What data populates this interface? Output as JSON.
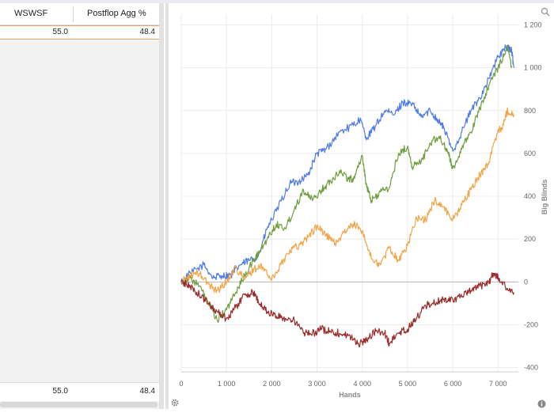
{
  "table": {
    "columns": [
      "WSWSF",
      "Postflop Agg %"
    ],
    "rows": [
      [
        "55.0",
        "48.4"
      ]
    ],
    "footer": [
      "55.0",
      "48.4"
    ]
  },
  "icons": [
    "search-icon",
    "gear-icon",
    "info-icon"
  ],
  "chart_data": {
    "type": "line",
    "title": "",
    "xlabel": "Hands",
    "ylabel": "Big Blinds",
    "xlim": [
      0,
      7450
    ],
    "ylim": [
      -420,
      1250
    ],
    "x_ticks": [
      0,
      1000,
      2000,
      3000,
      4000,
      5000,
      6000,
      7000
    ],
    "x_tick_labels": [
      "0",
      "1 000",
      "2 000",
      "3 000",
      "4 000",
      "5 000",
      "6 000",
      "7 000"
    ],
    "y_ticks": [
      -400,
      -200,
      0,
      200,
      400,
      600,
      800,
      1000,
      1200
    ],
    "y_tick_labels": [
      "-400",
      "-200",
      "0",
      "200",
      "400",
      "600",
      "800",
      "1 000",
      "1 200"
    ],
    "grid": true,
    "series": [
      {
        "color": "#4f7be8",
        "points": [
          [
            0,
            0
          ],
          [
            200,
            40
          ],
          [
            500,
            80
          ],
          [
            700,
            20
          ],
          [
            900,
            30
          ],
          [
            1100,
            30
          ],
          [
            1300,
            80
          ],
          [
            1500,
            100
          ],
          [
            1700,
            120
          ],
          [
            1900,
            250
          ],
          [
            2100,
            330
          ],
          [
            2400,
            460
          ],
          [
            2600,
            470
          ],
          [
            2800,
            500
          ],
          [
            3000,
            600
          ],
          [
            3200,
            620
          ],
          [
            3500,
            700
          ],
          [
            3800,
            730
          ],
          [
            3950,
            760
          ],
          [
            4100,
            670
          ],
          [
            4300,
            730
          ],
          [
            4500,
            800
          ],
          [
            4700,
            780
          ],
          [
            4900,
            840
          ],
          [
            5100,
            830
          ],
          [
            5300,
            770
          ],
          [
            5500,
            800
          ],
          [
            5700,
            750
          ],
          [
            5800,
            720
          ],
          [
            6000,
            610
          ],
          [
            6200,
            700
          ],
          [
            6400,
            800
          ],
          [
            6600,
            860
          ],
          [
            6800,
            950
          ],
          [
            7000,
            1050
          ],
          [
            7200,
            1100
          ],
          [
            7300,
            1080
          ],
          [
            7350,
            1000
          ]
        ]
      },
      {
        "color": "#6f9e3f",
        "points": [
          [
            0,
            0
          ],
          [
            200,
            20
          ],
          [
            400,
            -20
          ],
          [
            600,
            -100
          ],
          [
            800,
            -180
          ],
          [
            1000,
            -130
          ],
          [
            1200,
            -50
          ],
          [
            1400,
            30
          ],
          [
            1600,
            100
          ],
          [
            1700,
            130
          ],
          [
            1900,
            200
          ],
          [
            2100,
            270
          ],
          [
            2300,
            250
          ],
          [
            2500,
            340
          ],
          [
            2700,
            430
          ],
          [
            2900,
            380
          ],
          [
            3100,
            430
          ],
          [
            3300,
            470
          ],
          [
            3500,
            520
          ],
          [
            3700,
            480
          ],
          [
            3800,
            480
          ],
          [
            4000,
            590
          ],
          [
            4100,
            440
          ],
          [
            4200,
            380
          ],
          [
            4400,
            420
          ],
          [
            4600,
            440
          ],
          [
            4800,
            600
          ],
          [
            5000,
            630
          ],
          [
            5100,
            540
          ],
          [
            5300,
            560
          ],
          [
            5500,
            650
          ],
          [
            5700,
            680
          ],
          [
            5900,
            600
          ],
          [
            6000,
            530
          ],
          [
            6200,
            620
          ],
          [
            6400,
            700
          ],
          [
            6600,
            810
          ],
          [
            6800,
            920
          ],
          [
            7000,
            1000
          ],
          [
            7200,
            1100
          ],
          [
            7300,
            1010
          ]
        ]
      },
      {
        "color": "#f2a446",
        "points": [
          [
            0,
            0
          ],
          [
            200,
            30
          ],
          [
            400,
            40
          ],
          [
            600,
            -10
          ],
          [
            800,
            -40
          ],
          [
            1000,
            0
          ],
          [
            1200,
            70
          ],
          [
            1400,
            10
          ],
          [
            1600,
            60
          ],
          [
            1800,
            70
          ],
          [
            2000,
            10
          ],
          [
            2200,
            80
          ],
          [
            2400,
            150
          ],
          [
            2600,
            170
          ],
          [
            2800,
            210
          ],
          [
            3000,
            260
          ],
          [
            3200,
            220
          ],
          [
            3400,
            180
          ],
          [
            3600,
            230
          ],
          [
            3800,
            270
          ],
          [
            4000,
            240
          ],
          [
            4200,
            110
          ],
          [
            4400,
            80
          ],
          [
            4600,
            160
          ],
          [
            4800,
            100
          ],
          [
            5000,
            170
          ],
          [
            5200,
            300
          ],
          [
            5400,
            290
          ],
          [
            5600,
            380
          ],
          [
            5800,
            350
          ],
          [
            6000,
            290
          ],
          [
            6200,
            360
          ],
          [
            6400,
            430
          ],
          [
            6600,
            500
          ],
          [
            6800,
            560
          ],
          [
            7000,
            710
          ],
          [
            7100,
            720
          ],
          [
            7200,
            800
          ],
          [
            7350,
            780
          ]
        ]
      },
      {
        "color": "#9b2a2a",
        "points": [
          [
            0,
            0
          ],
          [
            200,
            -20
          ],
          [
            400,
            -60
          ],
          [
            600,
            -100
          ],
          [
            800,
            -140
          ],
          [
            1000,
            -170
          ],
          [
            1200,
            -120
          ],
          [
            1400,
            -60
          ],
          [
            1600,
            -50
          ],
          [
            1700,
            -90
          ],
          [
            1900,
            -140
          ],
          [
            2100,
            -160
          ],
          [
            2300,
            -170
          ],
          [
            2500,
            -180
          ],
          [
            2700,
            -240
          ],
          [
            2900,
            -240
          ],
          [
            3100,
            -220
          ],
          [
            3300,
            -230
          ],
          [
            3500,
            -240
          ],
          [
            3700,
            -250
          ],
          [
            3900,
            -290
          ],
          [
            4100,
            -270
          ],
          [
            4300,
            -230
          ],
          [
            4500,
            -240
          ],
          [
            4600,
            -290
          ],
          [
            4800,
            -240
          ],
          [
            5000,
            -220
          ],
          [
            5200,
            -170
          ],
          [
            5400,
            -110
          ],
          [
            5600,
            -100
          ],
          [
            5800,
            -80
          ],
          [
            6000,
            -80
          ],
          [
            6200,
            -70
          ],
          [
            6400,
            -40
          ],
          [
            6600,
            -20
          ],
          [
            6800,
            0
          ],
          [
            6900,
            40
          ],
          [
            7000,
            20
          ],
          [
            7200,
            -30
          ],
          [
            7350,
            -50
          ]
        ]
      }
    ]
  }
}
